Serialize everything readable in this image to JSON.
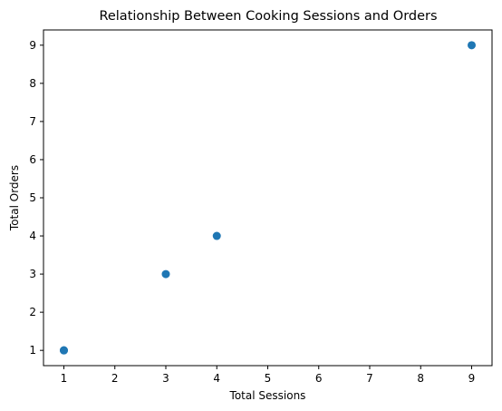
{
  "chart_data": {
    "type": "scatter",
    "title": "Relationship Between Cooking Sessions and Orders",
    "xlabel": "Total Sessions",
    "ylabel": "Total Orders",
    "xlim": [
      0.6,
      9.4
    ],
    "ylim": [
      0.6,
      9.4
    ],
    "xticks": [
      1,
      2,
      3,
      4,
      5,
      6,
      7,
      8,
      9
    ],
    "yticks": [
      1,
      2,
      3,
      4,
      5,
      6,
      7,
      8,
      9
    ],
    "grid": false,
    "marker_color": "#1f77b4",
    "series": [
      {
        "x": [
          1,
          1,
          3,
          4,
          9
        ],
        "y": [
          1,
          1,
          3,
          4,
          9
        ]
      }
    ]
  }
}
